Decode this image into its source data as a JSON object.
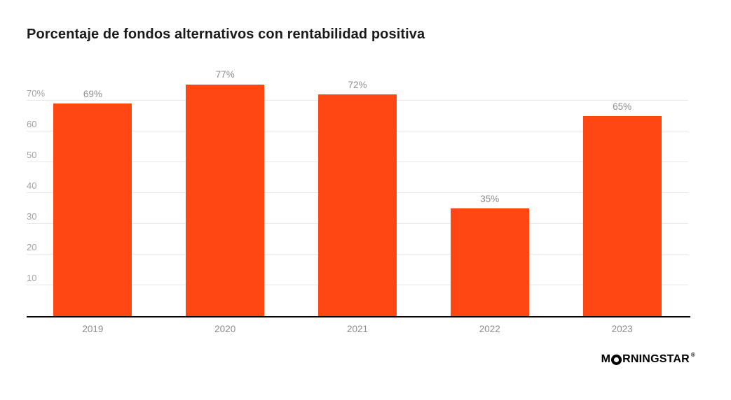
{
  "chart_data": {
    "type": "bar",
    "title": "Porcentaje de fondos alternativos con rentabilidad positiva",
    "categories": [
      "2019",
      "2020",
      "2021",
      "2022",
      "2023"
    ],
    "values": [
      69,
      77,
      72,
      35,
      65
    ],
    "value_labels": [
      "69%",
      "77%",
      "72%",
      "35%",
      "65%"
    ],
    "y_ticks": [
      {
        "value": 70,
        "label": "70%"
      },
      {
        "value": 60,
        "label": "60"
      },
      {
        "value": 50,
        "label": "50"
      },
      {
        "value": 40,
        "label": "40"
      },
      {
        "value": 30,
        "label": "30"
      },
      {
        "value": 20,
        "label": "20"
      },
      {
        "value": 10,
        "label": "10"
      }
    ],
    "ylim": [
      0,
      80
    ],
    "bar_color": "#FF4713",
    "grid": true,
    "legend": "none",
    "xlabel": "",
    "ylabel": ""
  },
  "footer": {
    "logo_prefix": "M",
    "logo_suffix": "RNINGSTAR",
    "registered": "®"
  }
}
